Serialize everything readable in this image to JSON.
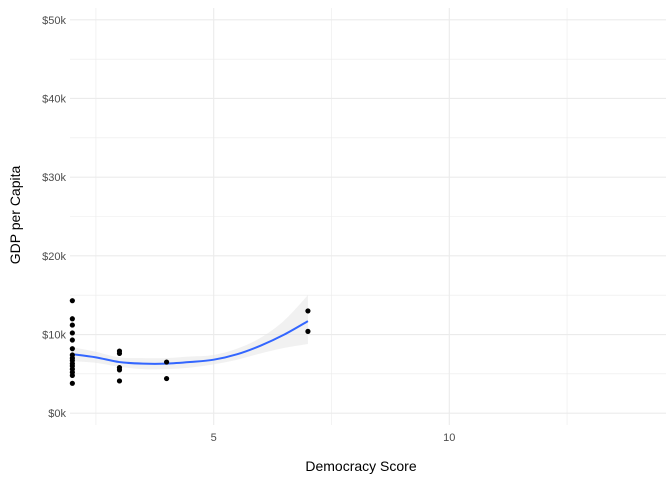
{
  "chart_data": {
    "type": "scatter",
    "title": "",
    "xlabel": "Democracy Score",
    "ylabel": "GDP per Capita",
    "xlim": [
      1.95,
      14.6
    ],
    "ylim": [
      -1500,
      51500
    ],
    "x_ticks": [
      5,
      10
    ],
    "x_minor_ticks": [
      2.5,
      7.5,
      12.5
    ],
    "y_ticks": [
      {
        "value": 0,
        "label": "$0k"
      },
      {
        "value": 10000,
        "label": "$10k"
      },
      {
        "value": 20000,
        "label": "$20k"
      },
      {
        "value": 30000,
        "label": "$30k"
      },
      {
        "value": 40000,
        "label": "$40k"
      },
      {
        "value": 50000,
        "label": "$50k"
      }
    ],
    "y_minor_ticks": [
      5000,
      15000,
      25000,
      35000,
      45000
    ],
    "grid": true,
    "colors": {
      "points": "#000000",
      "smooth_line": "#3366ff",
      "confidence_band": "#e6e6e6",
      "grid": "#ebebeb"
    },
    "points": [
      {
        "x": 2,
        "y": 14300
      },
      {
        "x": 2,
        "y": 12000
      },
      {
        "x": 2,
        "y": 11200
      },
      {
        "x": 2,
        "y": 10200
      },
      {
        "x": 2,
        "y": 9300
      },
      {
        "x": 2,
        "y": 8200
      },
      {
        "x": 2,
        "y": 7400
      },
      {
        "x": 2,
        "y": 7000
      },
      {
        "x": 2,
        "y": 6700
      },
      {
        "x": 2,
        "y": 6300
      },
      {
        "x": 2,
        "y": 6000
      },
      {
        "x": 2,
        "y": 5600
      },
      {
        "x": 2,
        "y": 5200
      },
      {
        "x": 2,
        "y": 4800
      },
      {
        "x": 2,
        "y": 3800
      },
      {
        "x": 3,
        "y": 7900
      },
      {
        "x": 3,
        "y": 7600
      },
      {
        "x": 3,
        "y": 5800
      },
      {
        "x": 3,
        "y": 5500
      },
      {
        "x": 3,
        "y": 4100
      },
      {
        "x": 4,
        "y": 6500
      },
      {
        "x": 4,
        "y": 4400
      },
      {
        "x": 7,
        "y": 13000
      },
      {
        "x": 7,
        "y": 10400
      }
    ],
    "smooth": {
      "method": "loess",
      "x": [
        2.0,
        2.5,
        3.0,
        3.5,
        4.0,
        4.5,
        5.0,
        5.5,
        6.0,
        6.5,
        7.0
      ],
      "y": [
        7500,
        7100,
        6500,
        6300,
        6300,
        6500,
        6800,
        7500,
        8600,
        10000,
        11700
      ],
      "lower": [
        6600,
        6400,
        5900,
        5600,
        5600,
        5800,
        6200,
        6800,
        7600,
        8300,
        8800
      ],
      "upper": [
        8400,
        7800,
        7100,
        7000,
        7000,
        7200,
        7400,
        8200,
        9600,
        11800,
        15000
      ]
    }
  }
}
